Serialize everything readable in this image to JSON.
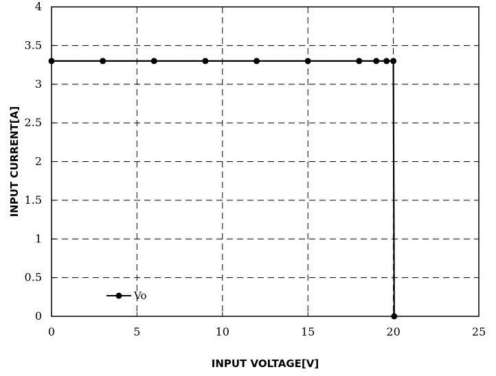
{
  "chart_data": {
    "type": "line",
    "xlabel": "INPUT VOLTAGE[V]",
    "ylabel": "INPUT CURRENT[A]",
    "xlim": [
      0,
      25
    ],
    "ylim": [
      0,
      4
    ],
    "x_ticks": [
      "0",
      "5",
      "10",
      "15",
      "20",
      "25"
    ],
    "y_ticks": [
      "0",
      "0.5",
      "1",
      "1.5",
      "2",
      "2.5",
      "3",
      "3.5",
      "4"
    ],
    "grid": true,
    "grid_style": "dashed",
    "legend_position": "bottom-left",
    "series": [
      {
        "name": "Vo",
        "color": "#000000",
        "marker": "circle",
        "x": [
          0,
          3,
          6,
          9,
          12,
          15,
          18,
          19,
          19.6,
          20,
          20.05
        ],
        "y": [
          3.3,
          3.3,
          3.3,
          3.3,
          3.3,
          3.3,
          3.3,
          3.3,
          3.3,
          3.3,
          0
        ]
      }
    ]
  }
}
